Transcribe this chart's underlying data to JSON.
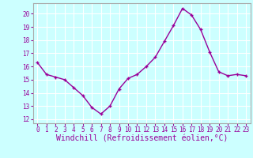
{
  "x": [
    0,
    1,
    2,
    3,
    4,
    5,
    6,
    7,
    8,
    9,
    10,
    11,
    12,
    13,
    14,
    15,
    16,
    17,
    18,
    19,
    20,
    21,
    22,
    23
  ],
  "y": [
    16.3,
    15.4,
    15.2,
    15.0,
    14.4,
    13.8,
    12.9,
    12.4,
    13.0,
    14.3,
    15.1,
    15.4,
    16.0,
    16.7,
    17.9,
    19.1,
    20.4,
    19.9,
    18.8,
    17.1,
    15.6,
    15.3,
    15.4,
    15.3
  ],
  "line_color": "#990099",
  "marker": "+",
  "marker_size": 3,
  "line_width": 1.0,
  "xlabel": "Windchill (Refroidissement éolien,°C)",
  "xlim": [
    -0.5,
    23.5
  ],
  "ylim": [
    11.7,
    20.8
  ],
  "yticks": [
    12,
    13,
    14,
    15,
    16,
    17,
    18,
    19,
    20
  ],
  "xticks": [
    0,
    1,
    2,
    3,
    4,
    5,
    6,
    7,
    8,
    9,
    10,
    11,
    12,
    13,
    14,
    15,
    16,
    17,
    18,
    19,
    20,
    21,
    22,
    23
  ],
  "bg_color": "#ccffff",
  "grid_color": "#ffffff",
  "tick_label_color": "#990099",
  "tick_label_size": 5.5,
  "xlabel_size": 7.0,
  "xlabel_color": "#990099",
  "spine_color": "#aaaaaa"
}
